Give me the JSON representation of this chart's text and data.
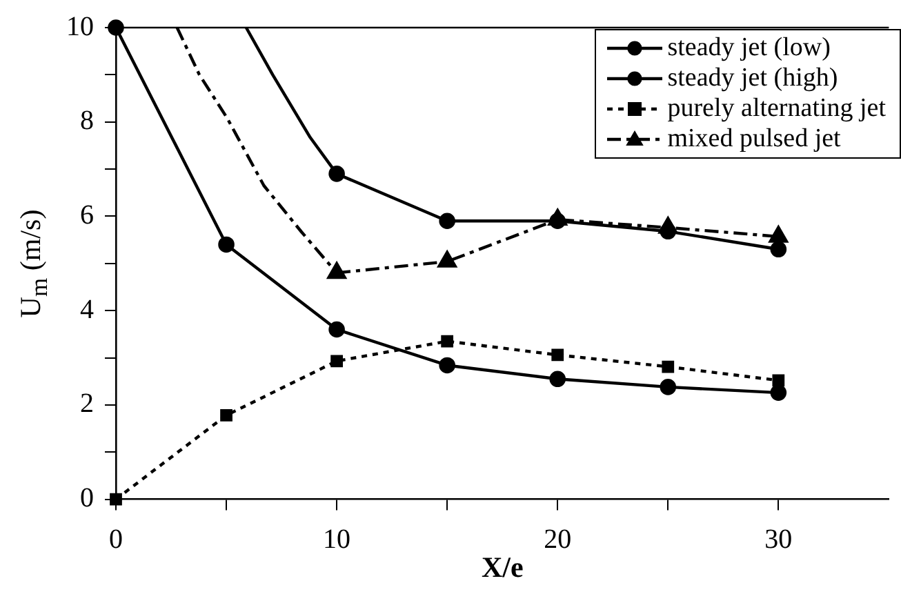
{
  "chart_data": {
    "type": "line",
    "xlabel": "X/e",
    "ylabel": "U$_{m}$ (m/s)",
    "xlim": [
      0,
      35
    ],
    "xticks": [
      0,
      {
        "value": 5,
        "label": null
      },
      10,
      {
        "value": 15,
        "label": null
      },
      20,
      {
        "value": 25,
        "label": null
      },
      30
    ],
    "ylim": [
      0,
      10
    ],
    "yticks": [
      0,
      {
        "value": 1,
        "label": null
      },
      2,
      {
        "value": 3,
        "label": null
      },
      4,
      {
        "value": 5,
        "label": null
      },
      6,
      {
        "value": 7,
        "label": null
      },
      8,
      {
        "value": 9,
        "label": null
      },
      10
    ],
    "grid": false,
    "legend": "top right",
    "series": [
      {
        "name": "steady jet (low)",
        "color": "#000000",
        "marker": "circle",
        "line_style": "solid",
        "x": [
          0,
          5,
          10,
          15,
          20,
          25,
          30
        ],
        "values": [
          10,
          5.4,
          3.6,
          2.84,
          2.55,
          2.38,
          2.26
        ]
      },
      {
        "name": "steady jet (high)",
        "color": "#000000",
        "marker": "circle",
        "line_style": "solid",
        "x": [
          10,
          15,
          20,
          25,
          30
        ],
        "values": [
          6.9,
          5.9,
          5.9,
          5.68,
          5.3
        ]
      },
      {
        "name": "purely alternating jet",
        "color": "#000000",
        "marker": "square",
        "line_style": "dotted",
        "x": [
          0,
          5,
          10,
          15,
          20,
          25,
          30
        ],
        "values": [
          0,
          1.78,
          2.93,
          3.35,
          3.06,
          2.81,
          2.52
        ]
      },
      {
        "name": "mixed pulsed jet",
        "color": "#000000",
        "marker": "triangle",
        "line_style": "dashed",
        "x": [
          10,
          15,
          20,
          25,
          30
        ],
        "values": [
          4.8,
          5.04,
          5.93,
          5.76,
          5.57
        ]
      },
      {
        "color": "#000000",
        "marker": "none",
        "line_style": "solid",
        "x": [
          5.9,
          7.1,
          8.8,
          10
        ],
        "values": [
          10,
          9.0,
          7.67,
          6.9
        ]
      },
      {
        "color": "#000000",
        "marker": "none",
        "line_style": "dashed",
        "x": [
          2.77,
          3.78,
          5.04,
          6.7,
          8.4,
          10
        ],
        "values": [
          10,
          9.0,
          8.08,
          6.65,
          5.67,
          4.8
        ]
      }
    ]
  }
}
